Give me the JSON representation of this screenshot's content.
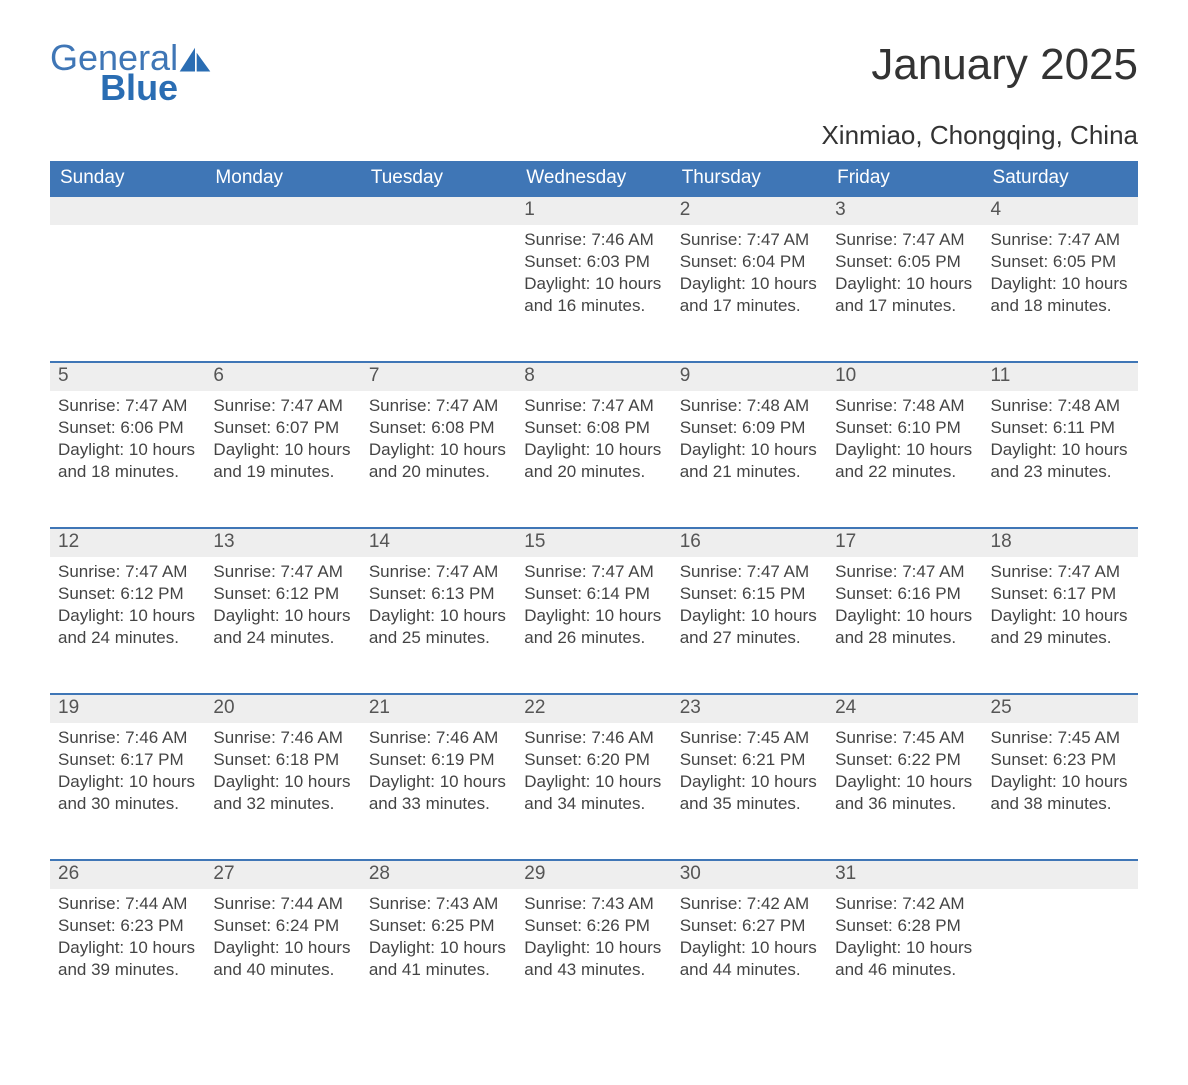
{
  "brand": {
    "line1": "General",
    "line2": "Blue"
  },
  "title": "January 2025",
  "location": "Xinmiao, Chongqing, China",
  "colors": {
    "header_bg": "#3f76b6",
    "header_text": "#ffffff",
    "daynum_bg": "#eeeeee",
    "daynum_border": "#3f76b6",
    "body_text": "#444444",
    "page_bg": "#ffffff"
  },
  "weekdays": [
    "Sunday",
    "Monday",
    "Tuesday",
    "Wednesday",
    "Thursday",
    "Friday",
    "Saturday"
  ],
  "labels": {
    "sunrise": "Sunrise:",
    "sunset": "Sunset:",
    "daylight": "Daylight:"
  },
  "weeks": [
    [
      null,
      null,
      null,
      {
        "d": "1",
        "sr": "7:46 AM",
        "ss": "6:03 PM",
        "dl": "10 hours and 16 minutes."
      },
      {
        "d": "2",
        "sr": "7:47 AM",
        "ss": "6:04 PM",
        "dl": "10 hours and 17 minutes."
      },
      {
        "d": "3",
        "sr": "7:47 AM",
        "ss": "6:05 PM",
        "dl": "10 hours and 17 minutes."
      },
      {
        "d": "4",
        "sr": "7:47 AM",
        "ss": "6:05 PM",
        "dl": "10 hours and 18 minutes."
      }
    ],
    [
      {
        "d": "5",
        "sr": "7:47 AM",
        "ss": "6:06 PM",
        "dl": "10 hours and 18 minutes."
      },
      {
        "d": "6",
        "sr": "7:47 AM",
        "ss": "6:07 PM",
        "dl": "10 hours and 19 minutes."
      },
      {
        "d": "7",
        "sr": "7:47 AM",
        "ss": "6:08 PM",
        "dl": "10 hours and 20 minutes."
      },
      {
        "d": "8",
        "sr": "7:47 AM",
        "ss": "6:08 PM",
        "dl": "10 hours and 20 minutes."
      },
      {
        "d": "9",
        "sr": "7:48 AM",
        "ss": "6:09 PM",
        "dl": "10 hours and 21 minutes."
      },
      {
        "d": "10",
        "sr": "7:48 AM",
        "ss": "6:10 PM",
        "dl": "10 hours and 22 minutes."
      },
      {
        "d": "11",
        "sr": "7:48 AM",
        "ss": "6:11 PM",
        "dl": "10 hours and 23 minutes."
      }
    ],
    [
      {
        "d": "12",
        "sr": "7:47 AM",
        "ss": "6:12 PM",
        "dl": "10 hours and 24 minutes."
      },
      {
        "d": "13",
        "sr": "7:47 AM",
        "ss": "6:12 PM",
        "dl": "10 hours and 24 minutes."
      },
      {
        "d": "14",
        "sr": "7:47 AM",
        "ss": "6:13 PM",
        "dl": "10 hours and 25 minutes."
      },
      {
        "d": "15",
        "sr": "7:47 AM",
        "ss": "6:14 PM",
        "dl": "10 hours and 26 minutes."
      },
      {
        "d": "16",
        "sr": "7:47 AM",
        "ss": "6:15 PM",
        "dl": "10 hours and 27 minutes."
      },
      {
        "d": "17",
        "sr": "7:47 AM",
        "ss": "6:16 PM",
        "dl": "10 hours and 28 minutes."
      },
      {
        "d": "18",
        "sr": "7:47 AM",
        "ss": "6:17 PM",
        "dl": "10 hours and 29 minutes."
      }
    ],
    [
      {
        "d": "19",
        "sr": "7:46 AM",
        "ss": "6:17 PM",
        "dl": "10 hours and 30 minutes."
      },
      {
        "d": "20",
        "sr": "7:46 AM",
        "ss": "6:18 PM",
        "dl": "10 hours and 32 minutes."
      },
      {
        "d": "21",
        "sr": "7:46 AM",
        "ss": "6:19 PM",
        "dl": "10 hours and 33 minutes."
      },
      {
        "d": "22",
        "sr": "7:46 AM",
        "ss": "6:20 PM",
        "dl": "10 hours and 34 minutes."
      },
      {
        "d": "23",
        "sr": "7:45 AM",
        "ss": "6:21 PM",
        "dl": "10 hours and 35 minutes."
      },
      {
        "d": "24",
        "sr": "7:45 AM",
        "ss": "6:22 PM",
        "dl": "10 hours and 36 minutes."
      },
      {
        "d": "25",
        "sr": "7:45 AM",
        "ss": "6:23 PM",
        "dl": "10 hours and 38 minutes."
      }
    ],
    [
      {
        "d": "26",
        "sr": "7:44 AM",
        "ss": "6:23 PM",
        "dl": "10 hours and 39 minutes."
      },
      {
        "d": "27",
        "sr": "7:44 AM",
        "ss": "6:24 PM",
        "dl": "10 hours and 40 minutes."
      },
      {
        "d": "28",
        "sr": "7:43 AM",
        "ss": "6:25 PM",
        "dl": "10 hours and 41 minutes."
      },
      {
        "d": "29",
        "sr": "7:43 AM",
        "ss": "6:26 PM",
        "dl": "10 hours and 43 minutes."
      },
      {
        "d": "30",
        "sr": "7:42 AM",
        "ss": "6:27 PM",
        "dl": "10 hours and 44 minutes."
      },
      {
        "d": "31",
        "sr": "7:42 AM",
        "ss": "6:28 PM",
        "dl": "10 hours and 46 minutes."
      },
      null
    ]
  ]
}
